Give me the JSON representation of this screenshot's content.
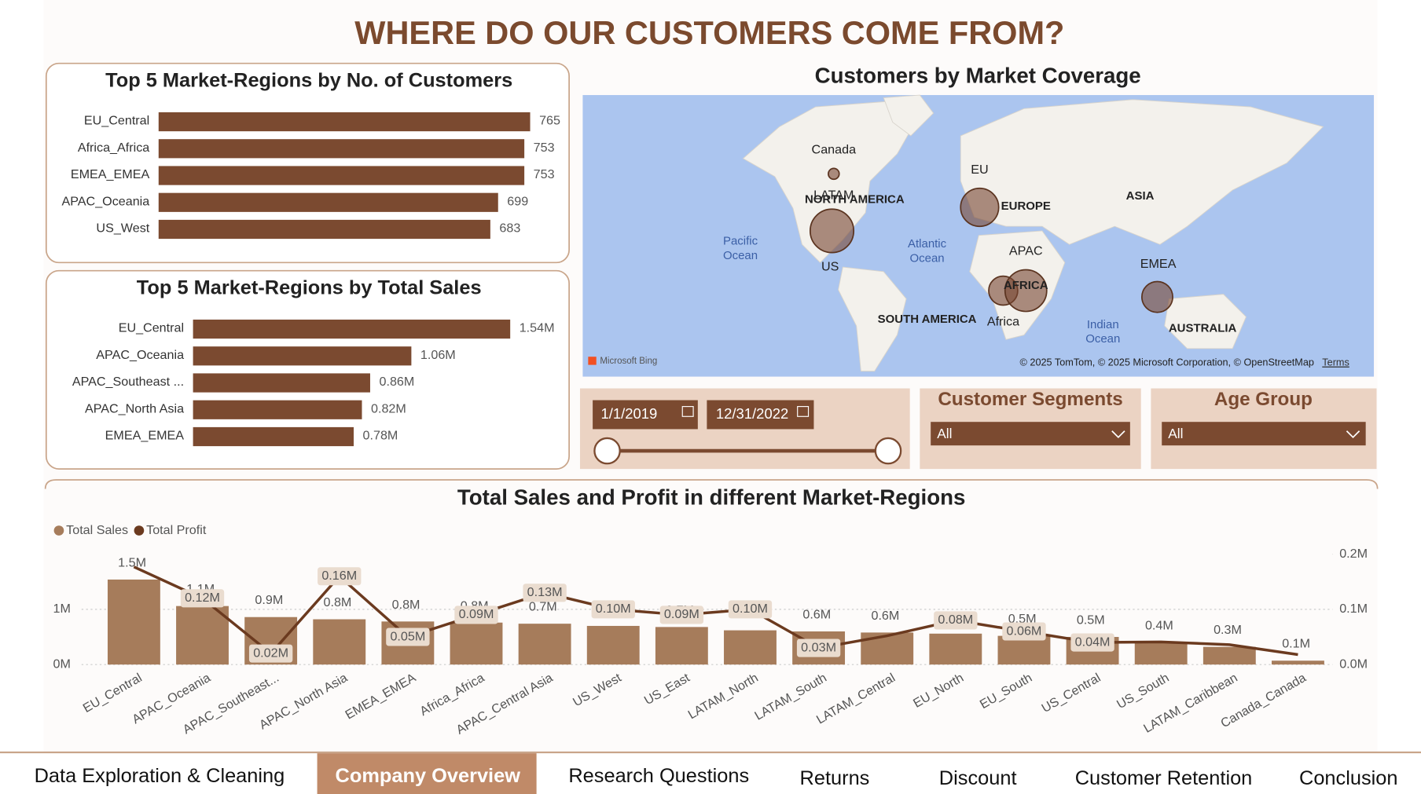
{
  "title": "WHERE DO OUR CUSTOMERS COME FROM?",
  "chart_data": [
    {
      "type": "hbar",
      "title": "Top 5 Market-Regions by No. of Customers",
      "categories": [
        "EU_Central",
        "Africa_Africa",
        "EMEA_EMEA",
        "APAC_Oceania",
        "US_West"
      ],
      "values": [
        765,
        753,
        753,
        699,
        683
      ],
      "color": "#7b4a30"
    },
    {
      "type": "hbar",
      "title": "Top 5 Market-Regions by Total Sales",
      "categories": [
        "EU_Central",
        "APAC_Oceania",
        "APAC_Southeast ...",
        "APAC_North Asia",
        "EMEA_EMEA"
      ],
      "values": [
        1540000,
        1060000,
        860000,
        820000,
        780000
      ],
      "value_labels": [
        "1.54M",
        "1.06M",
        "0.86M",
        "0.82M",
        "0.78M"
      ],
      "color": "#7b4a30"
    },
    {
      "type": "combo",
      "title": "Total Sales and Profit in different Market-Regions",
      "categories": [
        "EU_Central",
        "APAC_Oceania",
        "APAC_Southeast...",
        "APAC_North Asia",
        "EMEA_EMEA",
        "Africa_Africa",
        "APAC_Central Asia",
        "US_West",
        "US_East",
        "LATAM_North",
        "LATAM_South",
        "LATAM_Central",
        "EU_North",
        "EU_South",
        "US_Central",
        "US_South",
        "LATAM_Caribbean",
        "Canada_Canada"
      ],
      "series": [
        {
          "name": "Total Sales",
          "type": "bar",
          "color": "#a67c5b",
          "values": [
            1540000,
            1060000,
            860000,
            820000,
            780000,
            760000,
            740000,
            700000,
            680000,
            620000,
            600000,
            580000,
            560000,
            520000,
            500000,
            400000,
            320000,
            70000
          ],
          "value_labels": [
            "1.5M",
            "1.1M",
            "0.9M",
            "0.8M",
            "0.8M",
            "0.8M",
            "0.7M",
            "0.7M",
            "0.7M",
            "0.6M",
            "0.6M",
            "0.6M",
            "0.6M",
            "0.5M",
            "0.5M",
            "0.4M",
            "0.3M",
            "0.1M"
          ]
        },
        {
          "name": "Total Profit",
          "type": "line",
          "axis": "y2",
          "color": "#6b3a1f",
          "values": [
            177000,
            120000,
            20000,
            160000,
            50000,
            90000,
            130000,
            100000,
            90000,
            100000,
            30000,
            52000,
            80000,
            60000,
            40000,
            41000,
            36000,
            18000
          ],
          "value_labels": [
            null,
            "0.12M",
            "0.02M",
            "0.16M",
            "0.05M",
            "0.09M",
            "0.13M",
            "0.10M",
            "0.09M",
            "0.10M",
            "0.03M",
            null,
            "0.08M",
            "0.06M",
            "0.04M",
            null,
            null,
            null
          ]
        }
      ],
      "ylim": [
        0,
        2100000
      ],
      "yticks": [
        {
          "value": 0,
          "label": "0M"
        },
        {
          "value": 1000000,
          "label": "1M"
        }
      ],
      "y2lim": [
        0,
        210000
      ],
      "y2ticks": [
        {
          "value": 0,
          "label": "0.0M"
        },
        {
          "value": 100000,
          "label": "0.1M"
        },
        {
          "value": 200000,
          "label": "0.2M"
        }
      ],
      "grid": true
    }
  ],
  "map": {
    "title": "Customers by Market Coverage",
    "labels": [
      "Canada",
      "LATAM",
      "NORTH AMERICA",
      "US",
      "EU",
      "EUROPE",
      "ASIA",
      "APAC",
      "AFRICA",
      "Africa",
      "EMEA",
      "SOUTH AMERICA",
      "AUSTRALIA"
    ],
    "oceans": [
      [
        "Pacific",
        "Ocean"
      ],
      [
        "Atlantic",
        "Ocean"
      ],
      [
        "Indian",
        "Ocean"
      ]
    ],
    "logo": "Microsoft Bing",
    "attribution": "© 2025 TomTom, © 2025 Microsoft Corporation, © OpenStreetMap",
    "terms": "Terms"
  },
  "filters": {
    "start_date": "1/1/2019",
    "end_date": "12/31/2022",
    "segments": {
      "title": "Customer Segments",
      "value": "All"
    },
    "age_group": {
      "title": "Age Group",
      "value": "All"
    }
  },
  "nav": {
    "tabs": [
      "Data Exploration & Cleaning",
      "Company Overview",
      "Research Questions",
      "Returns",
      "Discount",
      "Customer Retention",
      "Conclusion"
    ]
  }
}
